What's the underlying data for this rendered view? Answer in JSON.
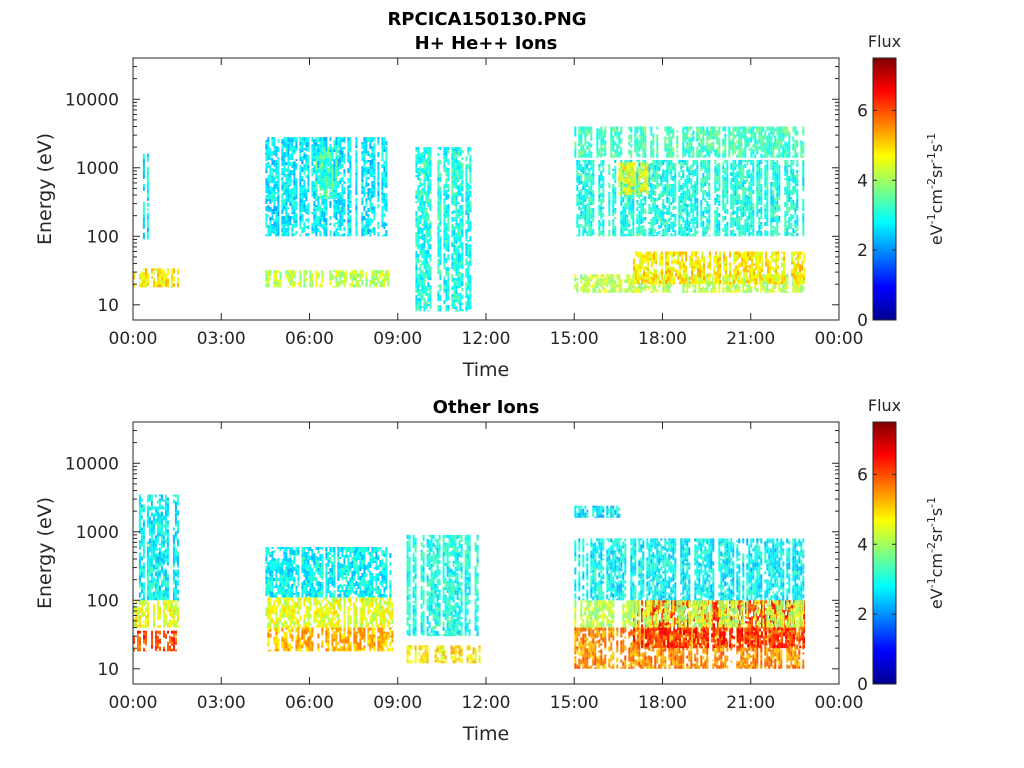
{
  "figure": {
    "filename": "RPCICA150130.PNG"
  },
  "chart_data": [
    {
      "type": "heatmap",
      "title": "H+ He++ Ions",
      "xlabel": "Time",
      "ylabel": "Energy (eV)",
      "xlim": [
        "00:00",
        "24:00"
      ],
      "x_ticks": [
        "00:00",
        "03:00",
        "06:00",
        "09:00",
        "12:00",
        "15:00",
        "18:00",
        "21:00",
        "00:00"
      ],
      "ylim": [
        6,
        40000
      ],
      "y_scale": "log",
      "y_ticks": [
        "10",
        "100",
        "1000",
        "10000"
      ],
      "colorbar": {
        "title": "Flux",
        "label": "eV-1cm-2sr-1s-1",
        "range": [
          0,
          7.5
        ],
        "ticks": [
          "0",
          "2",
          "4",
          "6"
        ],
        "colormap": "jet"
      },
      "regions": [
        {
          "t0": 0.0,
          "t1": 1.5,
          "e0": 18,
          "e1": 34,
          "flux": 4.8
        },
        {
          "t0": 0.2,
          "t1": 0.6,
          "e0": 90,
          "e1": 1600,
          "flux": 2.8
        },
        {
          "t0": 4.5,
          "t1": 8.7,
          "e0": 18,
          "e1": 32,
          "flux": 4.2
        },
        {
          "t0": 4.5,
          "t1": 8.6,
          "e0": 100,
          "e1": 2800,
          "flux": 2.7
        },
        {
          "t0": 6.2,
          "t1": 6.9,
          "e0": 350,
          "e1": 2000,
          "flux": 3.3
        },
        {
          "t0": 9.6,
          "t1": 11.6,
          "e0": 8,
          "e1": 2000,
          "flux": 3.0
        },
        {
          "t0": 15.0,
          "t1": 22.8,
          "e0": 15,
          "e1": 28,
          "flux": 4.2
        },
        {
          "t0": 17.0,
          "t1": 22.8,
          "e0": 20,
          "e1": 60,
          "flux": 4.8
        },
        {
          "t0": 15.0,
          "t1": 22.8,
          "e0": 100,
          "e1": 1300,
          "flux": 3.0
        },
        {
          "t0": 15.0,
          "t1": 22.8,
          "e0": 1400,
          "e1": 4000,
          "flux": 3.3
        },
        {
          "t0": 16.5,
          "t1": 17.5,
          "e0": 400,
          "e1": 1200,
          "flux": 4.5
        }
      ]
    },
    {
      "type": "heatmap",
      "title": "Other Ions",
      "xlabel": "Time",
      "ylabel": "Energy (eV)",
      "xlim": [
        "00:00",
        "24:00"
      ],
      "x_ticks": [
        "00:00",
        "03:00",
        "06:00",
        "09:00",
        "12:00",
        "15:00",
        "18:00",
        "21:00",
        "00:00"
      ],
      "ylim": [
        6,
        40000
      ],
      "y_scale": "log",
      "y_ticks": [
        "10",
        "100",
        "1000",
        "10000"
      ],
      "colorbar": {
        "title": "Flux",
        "label": "eV-1cm-2sr-1s-1",
        "range": [
          0,
          7.5
        ],
        "ticks": [
          "0",
          "2",
          "4",
          "6"
        ],
        "colormap": "jet"
      },
      "regions": [
        {
          "t0": 0.0,
          "t1": 1.5,
          "e0": 18,
          "e1": 36,
          "flux": 6.0
        },
        {
          "t0": 0.0,
          "t1": 1.5,
          "e0": 40,
          "e1": 100,
          "flux": 4.5
        },
        {
          "t0": 0.2,
          "t1": 1.5,
          "e0": 100,
          "e1": 3500,
          "flux": 2.8
        },
        {
          "t0": 4.5,
          "t1": 8.8,
          "e0": 18,
          "e1": 40,
          "flux": 5.2
        },
        {
          "t0": 4.5,
          "t1": 8.8,
          "e0": 40,
          "e1": 110,
          "flux": 4.5
        },
        {
          "t0": 4.5,
          "t1": 8.8,
          "e0": 110,
          "e1": 600,
          "flux": 2.8
        },
        {
          "t0": 9.3,
          "t1": 11.8,
          "e0": 12,
          "e1": 22,
          "flux": 4.8
        },
        {
          "t0": 9.3,
          "t1": 11.8,
          "e0": 30,
          "e1": 900,
          "flux": 3.0
        },
        {
          "t0": 15.0,
          "t1": 22.8,
          "e0": 10,
          "e1": 40,
          "flux": 5.5
        },
        {
          "t0": 17.0,
          "t1": 22.8,
          "e0": 20,
          "e1": 100,
          "flux": 6.2
        },
        {
          "t0": 15.0,
          "t1": 22.8,
          "e0": 40,
          "e1": 100,
          "flux": 4.2
        },
        {
          "t0": 15.0,
          "t1": 22.8,
          "e0": 100,
          "e1": 800,
          "flux": 2.8
        },
        {
          "t0": 15.0,
          "t1": 16.5,
          "e0": 1600,
          "e1": 2400,
          "flux": 2.7
        }
      ]
    }
  ]
}
